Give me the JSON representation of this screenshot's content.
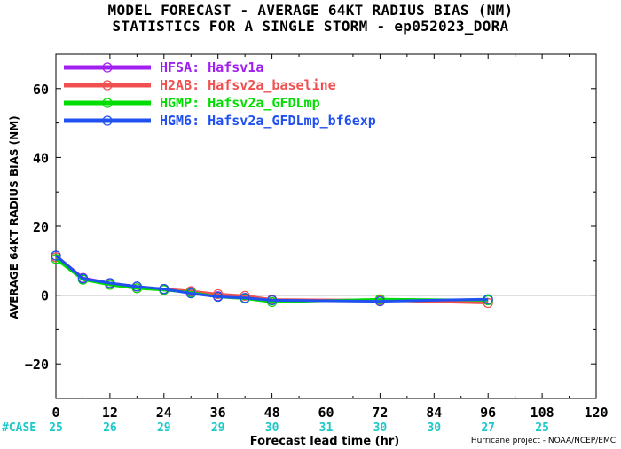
{
  "chart_data": {
    "type": "line",
    "title": "MODEL FORECAST - AVERAGE 64KT RADIUS BIAS (NM)",
    "subtitle": "STATISTICS FOR A SINGLE STORM - ep052023_DORA",
    "xlabel": "Forecast lead time (hr)",
    "ylabel": "AVERAGE 64KT RADIUS BIAS (NM)",
    "xlim": [
      0,
      120
    ],
    "ylim": [
      -30,
      70
    ],
    "xticks": [
      0,
      12,
      24,
      36,
      48,
      60,
      72,
      84,
      96,
      108,
      120
    ],
    "yticks": [
      -20,
      0,
      20,
      40,
      60
    ],
    "legend_position": "top-left",
    "case_label": "#CASE",
    "cases": [
      {
        "x": 0,
        "n": "25"
      },
      {
        "x": 12,
        "n": "26"
      },
      {
        "x": 24,
        "n": "29"
      },
      {
        "x": 36,
        "n": "29"
      },
      {
        "x": 48,
        "n": "30"
      },
      {
        "x": 60,
        "n": "31"
      },
      {
        "x": 72,
        "n": "30"
      },
      {
        "x": 84,
        "n": "30"
      },
      {
        "x": 96,
        "n": "27"
      },
      {
        "x": 108,
        "n": "25"
      }
    ],
    "series": [
      {
        "name": "HFSA: Hafsv1a",
        "color": "#a020f0",
        "x": [
          0,
          6,
          12,
          18,
          24,
          30,
          36,
          42,
          48,
          72,
          96
        ],
        "values": [
          11.5,
          5.0,
          3.5,
          2.5,
          1.5,
          1.0,
          -0.3,
          -0.8,
          -1.5,
          -1.5,
          -1.5
        ]
      },
      {
        "name": "H2AB: Hafsv2a_baseline",
        "color": "#f05050",
        "x": [
          0,
          6,
          12,
          18,
          24,
          30,
          36,
          42,
          48,
          72,
          96
        ],
        "values": [
          11.0,
          4.8,
          3.0,
          2.0,
          1.8,
          1.2,
          0.3,
          -0.2,
          -1.3,
          -1.5,
          -2.3
        ]
      },
      {
        "name": "HGMP: Hafsv2a_GFDLmp",
        "color": "#00dd00",
        "x": [
          0,
          6,
          12,
          18,
          24,
          30,
          36,
          42,
          48,
          72,
          96
        ],
        "values": [
          10.5,
          4.5,
          3.0,
          2.0,
          1.5,
          0.8,
          -0.5,
          -1.0,
          -2.0,
          -1.2,
          -1.5
        ]
      },
      {
        "name": "HGM6: Hafsv2a_GFDLmp_bf6exp",
        "color": "#2050f0",
        "x": [
          0,
          6,
          12,
          18,
          24,
          30,
          36,
          42,
          48,
          72,
          96
        ],
        "values": [
          11.5,
          4.8,
          3.5,
          2.5,
          1.8,
          0.5,
          -0.5,
          -0.8,
          -1.5,
          -1.8,
          -1.2
        ]
      }
    ],
    "grid": false,
    "zero_line": true
  },
  "footer": {
    "credit": "Hurricane project - NOAA/NCEP/EMC"
  }
}
